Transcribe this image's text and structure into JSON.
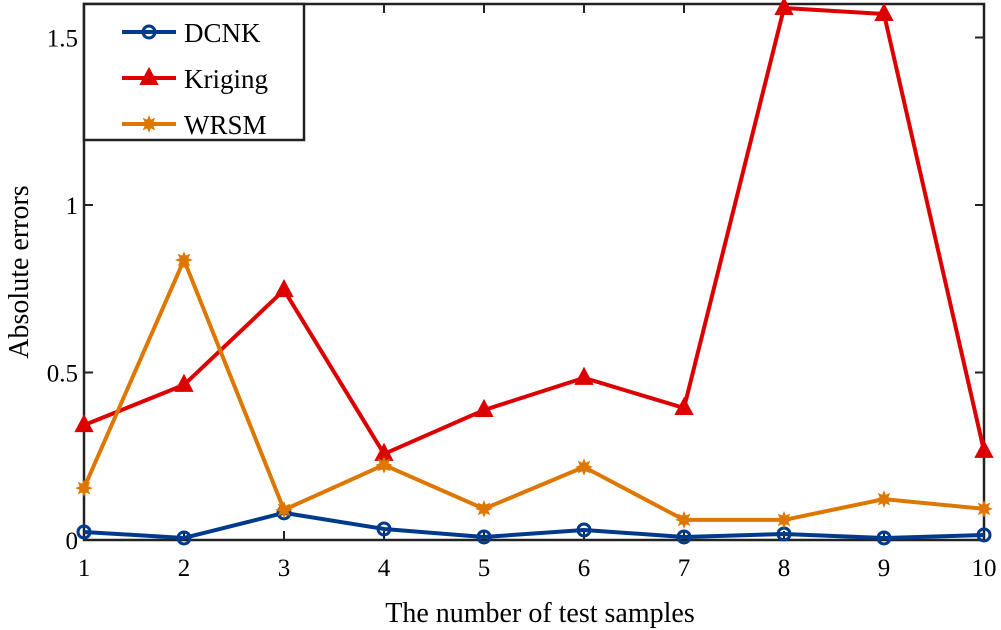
{
  "chart_data": {
    "type": "line",
    "title": "",
    "xlabel": "The number of test samples",
    "ylabel": "Absolute errors",
    "x": [
      1,
      2,
      3,
      4,
      5,
      6,
      7,
      8,
      9,
      10
    ],
    "xlim": [
      1,
      10
    ],
    "ylim": [
      0,
      1.6
    ],
    "xticks": [
      "1",
      "2",
      "3",
      "4",
      "5",
      "6",
      "7",
      "8",
      "9",
      "10"
    ],
    "yticks": [
      {
        "v": 0,
        "label": "0"
      },
      {
        "v": 0.5,
        "label": "0.5"
      },
      {
        "v": 1,
        "label": "1"
      },
      {
        "v": 1.5,
        "label": "1.5"
      }
    ],
    "grid": false,
    "legend_position": "top-left",
    "series": [
      {
        "name": "DCNK",
        "color": "#003a8c",
        "marker": "circle",
        "values": [
          0.024,
          0.006,
          0.081,
          0.033,
          0.009,
          0.03,
          0.009,
          0.018,
          0.006,
          0.015
        ]
      },
      {
        "name": "Kriging",
        "color": "#dd0000",
        "marker": "triangle",
        "values": [
          0.343,
          0.463,
          0.746,
          0.257,
          0.388,
          0.484,
          0.394,
          1.588,
          1.57,
          0.266
        ]
      },
      {
        "name": "WRSM",
        "color": "#dd7700",
        "marker": "star",
        "values": [
          0.155,
          0.836,
          0.09,
          0.224,
          0.093,
          0.218,
          0.06,
          0.06,
          0.122,
          0.093
        ]
      }
    ]
  }
}
